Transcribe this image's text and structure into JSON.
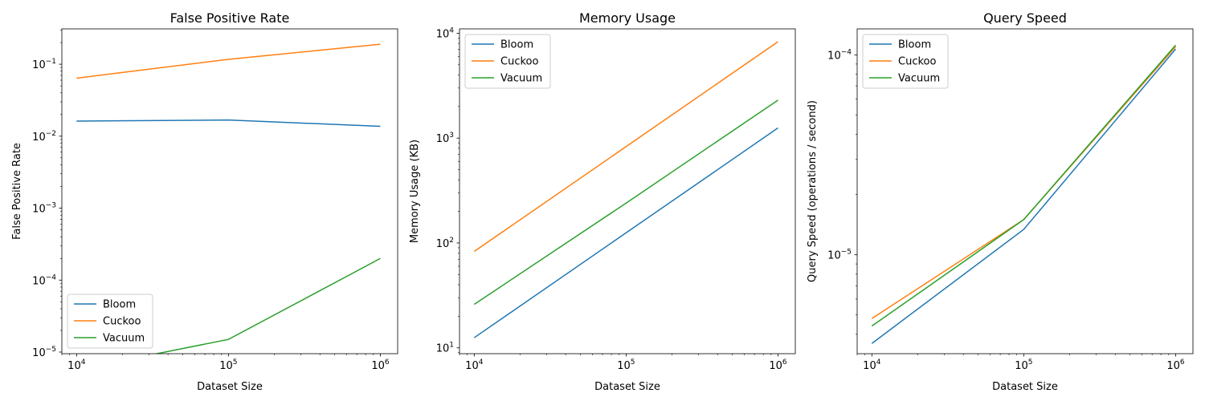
{
  "colors": {
    "Bloom": "#1f77b4",
    "Cuckoo": "#ff7f0e",
    "Vacuum": "#2ca02c"
  },
  "chart_data": [
    {
      "type": "line",
      "title": "False Positive Rate",
      "xlabel": "Dataset Size",
      "ylabel": "False Positive Rate",
      "xscale": "log",
      "yscale": "log",
      "x": [
        10000,
        100000,
        1000000
      ],
      "xlim": [
        8000,
        1300000
      ],
      "ylim": [
        9.5e-06,
        0.31
      ],
      "xticks": [
        {
          "label": "10",
          "exp": "4",
          "value": 10000
        },
        {
          "label": "10",
          "exp": "5",
          "value": 100000
        },
        {
          "label": "10",
          "exp": "6",
          "value": 1000000
        }
      ],
      "yticks": [
        {
          "label": "10",
          "exp": "−5",
          "value": 1e-05
        },
        {
          "label": "10",
          "exp": "−4",
          "value": 0.0001
        },
        {
          "label": "10",
          "exp": "−3",
          "value": 0.001
        },
        {
          "label": "10",
          "exp": "−2",
          "value": 0.01
        },
        {
          "label": "10",
          "exp": "−1",
          "value": 0.1
        }
      ],
      "legend": "lower-left",
      "grid": false,
      "series": [
        {
          "name": "Bloom",
          "values": [
            0.0162,
            0.0168,
            0.0137
          ]
        },
        {
          "name": "Cuckoo",
          "values": [
            0.064,
            0.117,
            0.19
          ]
        },
        {
          "name": "Vacuum",
          "values": [
            0,
            1.5e-05,
            0.0002
          ]
        }
      ]
    },
    {
      "type": "line",
      "title": "Memory Usage",
      "xlabel": "Dataset Size",
      "ylabel": "Memory Usage (KB)",
      "xscale": "log",
      "yscale": "log",
      "x": [
        10000,
        100000,
        1000000
      ],
      "xlim": [
        8000,
        1300000
      ],
      "ylim": [
        8.8,
        11000
      ],
      "xticks": [
        {
          "label": "10",
          "exp": "4",
          "value": 10000
        },
        {
          "label": "10",
          "exp": "5",
          "value": 100000
        },
        {
          "label": "10",
          "exp": "6",
          "value": 1000000
        }
      ],
      "yticks": [
        {
          "label": "10",
          "exp": "1",
          "value": 10
        },
        {
          "label": "10",
          "exp": "2",
          "value": 100
        },
        {
          "label": "10",
          "exp": "3",
          "value": 1000
        },
        {
          "label": "10",
          "exp": "4",
          "value": 10000
        }
      ],
      "legend": "upper-left",
      "grid": false,
      "series": [
        {
          "name": "Bloom",
          "values": [
            12.5,
            125,
            1250
          ]
        },
        {
          "name": "Cuckoo",
          "values": [
            83,
            830,
            8300
          ]
        },
        {
          "name": "Vacuum",
          "values": [
            26,
            240,
            2300
          ]
        }
      ]
    },
    {
      "type": "line",
      "title": "Query Speed",
      "xlabel": "Dataset Size",
      "ylabel": "Query Speed (operations / second)",
      "xscale": "log",
      "yscale": "log",
      "x": [
        10000,
        100000,
        1000000
      ],
      "xlim": [
        8000,
        1300000
      ],
      "ylim": [
        3.2e-06,
        0.000135
      ],
      "xticks": [
        {
          "label": "10",
          "exp": "4",
          "value": 10000
        },
        {
          "label": "10",
          "exp": "5",
          "value": 100000
        },
        {
          "label": "10",
          "exp": "6",
          "value": 1000000
        }
      ],
      "yticks": [
        {
          "label": "10",
          "exp": "−5",
          "value": 1e-05
        },
        {
          "label": "10",
          "exp": "−4",
          "value": 0.0001
        }
      ],
      "legend": "upper-left",
      "grid": false,
      "series": [
        {
          "name": "Bloom",
          "values": [
            3.6e-06,
            1.34e-05,
            0.000107
          ]
        },
        {
          "name": "Cuckoo",
          "values": [
            4.8e-06,
            1.5e-05,
            0.00011
          ]
        },
        {
          "name": "Vacuum",
          "values": [
            4.4e-06,
            1.5e-05,
            0.000112
          ]
        }
      ]
    }
  ]
}
